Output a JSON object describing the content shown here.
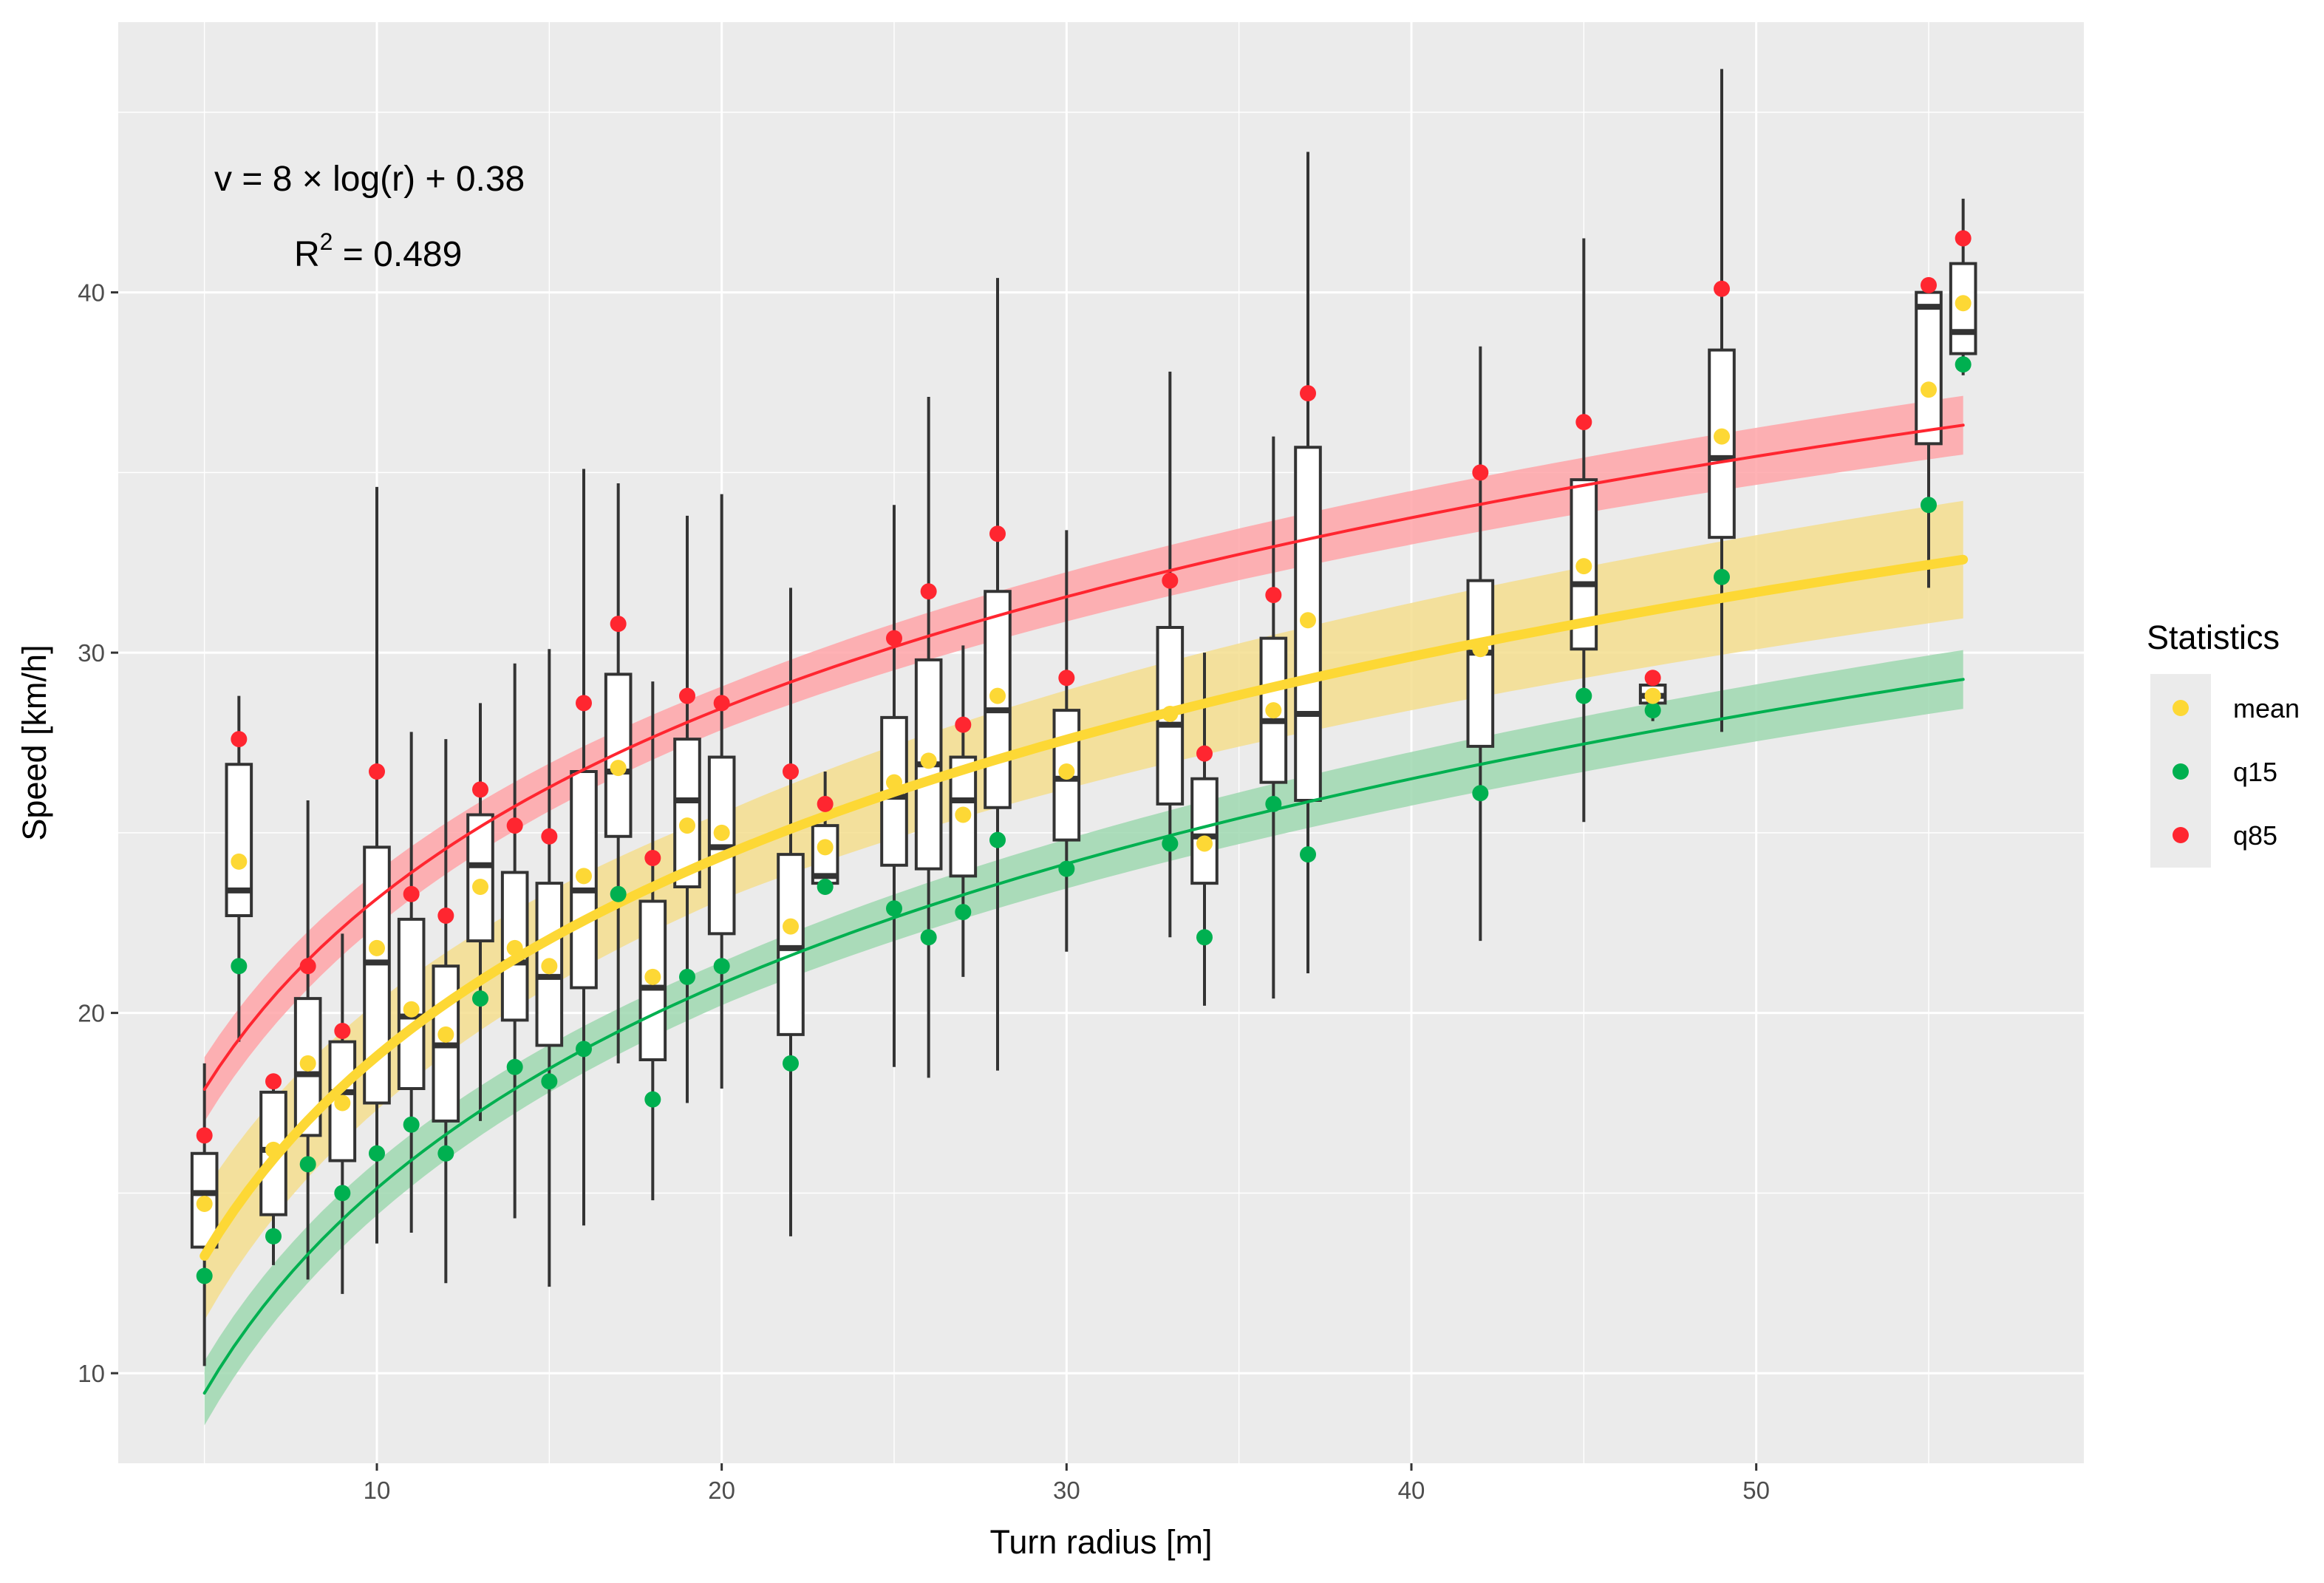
{
  "chart_data": {
    "type": "boxplot",
    "xlabel": "Turn radius [m]",
    "ylabel": "Speed [km/h]",
    "xlim": [
      2.5,
      59.5
    ],
    "ylim": [
      7.5,
      47.5
    ],
    "x_ticks": [
      10,
      20,
      30,
      40,
      50
    ],
    "y_ticks": [
      10,
      20,
      30,
      40
    ],
    "grid": true,
    "annotations": {
      "equation": "v = 8 × log(r) + 0.38",
      "r2_label": "R",
      "r2_superscript": "2",
      "r2_value": " = 0.489"
    },
    "legend": {
      "title": "Statistics",
      "position": "right",
      "entries": [
        {
          "name": "mean",
          "color": "#FDD835"
        },
        {
          "name": "q15",
          "color": "#00B050"
        },
        {
          "name": "q85",
          "color": "#FF2630"
        }
      ]
    },
    "fits": [
      {
        "name": "mean",
        "a": 8.0,
        "b": 0.38,
        "band": 1.2,
        "color": "#FDD835",
        "band_color": "#F5DE8E"
      },
      {
        "name": "q15",
        "a": 8.2,
        "b": -3.75,
        "band": 0.6,
        "color": "#00B050",
        "band_color": "#9FD8B0"
      },
      {
        "name": "q85",
        "a": 7.63,
        "b": 5.6,
        "band": 0.6,
        "color": "#FF2630",
        "band_color": "#FFA4A8"
      }
    ],
    "boxes": [
      {
        "r": 5,
        "wlo": 10.2,
        "q1": 13.5,
        "med": 15.0,
        "q3": 16.1,
        "whi": 18.6,
        "mean": 14.7,
        "q15": 12.7,
        "q85": 16.6
      },
      {
        "r": 6,
        "wlo": 19.2,
        "q1": 22.7,
        "med": 23.4,
        "q3": 26.9,
        "whi": 28.8,
        "mean": 24.2,
        "q15": 21.3,
        "q85": 27.6
      },
      {
        "r": 7,
        "wlo": 13.0,
        "q1": 14.4,
        "med": 16.2,
        "q3": 17.8,
        "whi": 18.1,
        "mean": 16.2,
        "q15": 13.8,
        "q85": 18.1
      },
      {
        "r": 8,
        "wlo": 12.6,
        "q1": 16.6,
        "med": 18.3,
        "q3": 20.4,
        "whi": 25.9,
        "mean": 18.6,
        "q15": 15.8,
        "q85": 21.3
      },
      {
        "r": 9,
        "wlo": 12.2,
        "q1": 15.9,
        "med": 17.8,
        "q3": 19.2,
        "whi": 22.2,
        "mean": 17.5,
        "q15": 15.0,
        "q85": 19.5
      },
      {
        "r": 10,
        "wlo": 13.6,
        "q1": 17.5,
        "med": 21.4,
        "q3": 24.6,
        "whi": 34.6,
        "mean": 21.8,
        "q15": 16.1,
        "q85": 26.7
      },
      {
        "r": 11,
        "wlo": 13.9,
        "q1": 17.9,
        "med": 19.9,
        "q3": 22.6,
        "whi": 27.8,
        "mean": 20.1,
        "q15": 16.9,
        "q85": 23.3
      },
      {
        "r": 12,
        "wlo": 12.5,
        "q1": 17.0,
        "med": 19.1,
        "q3": 21.3,
        "whi": 27.6,
        "mean": 19.4,
        "q15": 16.1,
        "q85": 22.7
      },
      {
        "r": 13,
        "wlo": 17.0,
        "q1": 22.0,
        "med": 24.1,
        "q3": 25.5,
        "whi": 28.6,
        "mean": 23.5,
        "q15": 20.4,
        "q85": 26.2
      },
      {
        "r": 14,
        "wlo": 14.3,
        "q1": 19.8,
        "med": 21.4,
        "q3": 23.9,
        "whi": 29.7,
        "mean": 21.8,
        "q15": 18.5,
        "q85": 25.2
      },
      {
        "r": 15,
        "wlo": 12.4,
        "q1": 19.1,
        "med": 21.0,
        "q3": 23.6,
        "whi": 30.1,
        "mean": 21.3,
        "q15": 18.1,
        "q85": 24.9
      },
      {
        "r": 16,
        "wlo": 14.1,
        "q1": 20.7,
        "med": 23.4,
        "q3": 26.7,
        "whi": 35.1,
        "mean": 23.8,
        "q15": 19.0,
        "q85": 28.6
      },
      {
        "r": 17,
        "wlo": 18.6,
        "q1": 24.9,
        "med": 26.7,
        "q3": 29.4,
        "whi": 34.7,
        "mean": 26.8,
        "q15": 23.3,
        "q85": 30.8
      },
      {
        "r": 18,
        "wlo": 14.8,
        "q1": 18.7,
        "med": 20.7,
        "q3": 23.1,
        "whi": 29.2,
        "mean": 21.0,
        "q15": 17.6,
        "q85": 24.3
      },
      {
        "r": 19,
        "wlo": 17.5,
        "q1": 23.5,
        "med": 25.9,
        "q3": 27.6,
        "whi": 33.8,
        "mean": 25.2,
        "q15": 21.0,
        "q85": 28.8
      },
      {
        "r": 20,
        "wlo": 17.9,
        "q1": 22.2,
        "med": 24.6,
        "q3": 27.1,
        "whi": 34.4,
        "mean": 25.0,
        "q15": 21.3,
        "q85": 28.6
      },
      {
        "r": 22,
        "wlo": 13.8,
        "q1": 19.4,
        "med": 21.8,
        "q3": 24.4,
        "whi": 31.8,
        "mean": 22.4,
        "q15": 18.6,
        "q85": 26.7
      },
      {
        "r": 23,
        "wlo": 23.4,
        "q1": 23.6,
        "med": 23.8,
        "q3": 25.2,
        "whi": 26.7,
        "mean": 24.6,
        "q15": 23.5,
        "q85": 25.8
      },
      {
        "r": 25,
        "wlo": 18.5,
        "q1": 24.1,
        "med": 26.0,
        "q3": 28.2,
        "whi": 34.1,
        "mean": 26.4,
        "q15": 22.9,
        "q85": 30.4
      },
      {
        "r": 26,
        "wlo": 18.2,
        "q1": 24.0,
        "med": 26.9,
        "q3": 29.8,
        "whi": 37.1,
        "mean": 27.0,
        "q15": 22.1,
        "q85": 31.7
      },
      {
        "r": 27,
        "wlo": 21.0,
        "q1": 23.8,
        "med": 25.9,
        "q3": 27.1,
        "whi": 30.2,
        "mean": 25.5,
        "q15": 22.8,
        "q85": 28.0
      },
      {
        "r": 28,
        "wlo": 18.4,
        "q1": 25.7,
        "med": 28.4,
        "q3": 31.7,
        "whi": 40.4,
        "mean": 28.8,
        "q15": 24.8,
        "q85": 33.3
      },
      {
        "r": 30,
        "wlo": 21.7,
        "q1": 24.8,
        "med": 26.5,
        "q3": 28.4,
        "whi": 33.4,
        "mean": 26.7,
        "q15": 24.0,
        "q85": 29.3
      },
      {
        "r": 33,
        "wlo": 22.1,
        "q1": 25.8,
        "med": 28.0,
        "q3": 30.7,
        "whi": 37.8,
        "mean": 28.3,
        "q15": 24.7,
        "q85": 32.0
      },
      {
        "r": 34,
        "wlo": 20.2,
        "q1": 23.6,
        "med": 24.9,
        "q3": 26.5,
        "whi": 30.0,
        "mean": 24.7,
        "q15": 22.1,
        "q85": 27.2
      },
      {
        "r": 36,
        "wlo": 20.4,
        "q1": 26.4,
        "med": 28.1,
        "q3": 30.4,
        "whi": 36.0,
        "mean": 28.4,
        "q15": 25.8,
        "q85": 31.6
      },
      {
        "r": 37,
        "wlo": 21.1,
        "q1": 25.9,
        "med": 28.3,
        "q3": 35.7,
        "whi": 43.9,
        "mean": 30.9,
        "q15": 24.4,
        "q85": 37.2
      },
      {
        "r": 42,
        "wlo": 22.0,
        "q1": 27.4,
        "med": 30.0,
        "q3": 32.0,
        "whi": 38.5,
        "mean": 30.1,
        "q15": 26.1,
        "q85": 35.0
      },
      {
        "r": 45,
        "wlo": 25.3,
        "q1": 30.1,
        "med": 31.9,
        "q3": 34.8,
        "whi": 41.5,
        "mean": 32.4,
        "q15": 28.8,
        "q85": 36.4
      },
      {
        "r": 47,
        "wlo": 28.1,
        "q1": 28.6,
        "med": 28.8,
        "q3": 29.1,
        "whi": 29.5,
        "mean": 28.8,
        "q15": 28.4,
        "q85": 29.3
      },
      {
        "r": 49,
        "wlo": 27.8,
        "q1": 33.2,
        "med": 35.4,
        "q3": 38.4,
        "whi": 46.2,
        "mean": 36.0,
        "q15": 32.1,
        "q85": 40.1
      },
      {
        "r": 55,
        "wlo": 31.8,
        "q1": 35.8,
        "med": 39.6,
        "q3": 40.0,
        "whi": 40.2,
        "mean": 37.3,
        "q15": 34.1,
        "q85": 40.2
      },
      {
        "r": 56,
        "wlo": 37.7,
        "q1": 38.3,
        "med": 38.9,
        "q3": 40.8,
        "whi": 42.6,
        "mean": 39.7,
        "q15": 38.0,
        "q85": 41.5
      }
    ]
  }
}
